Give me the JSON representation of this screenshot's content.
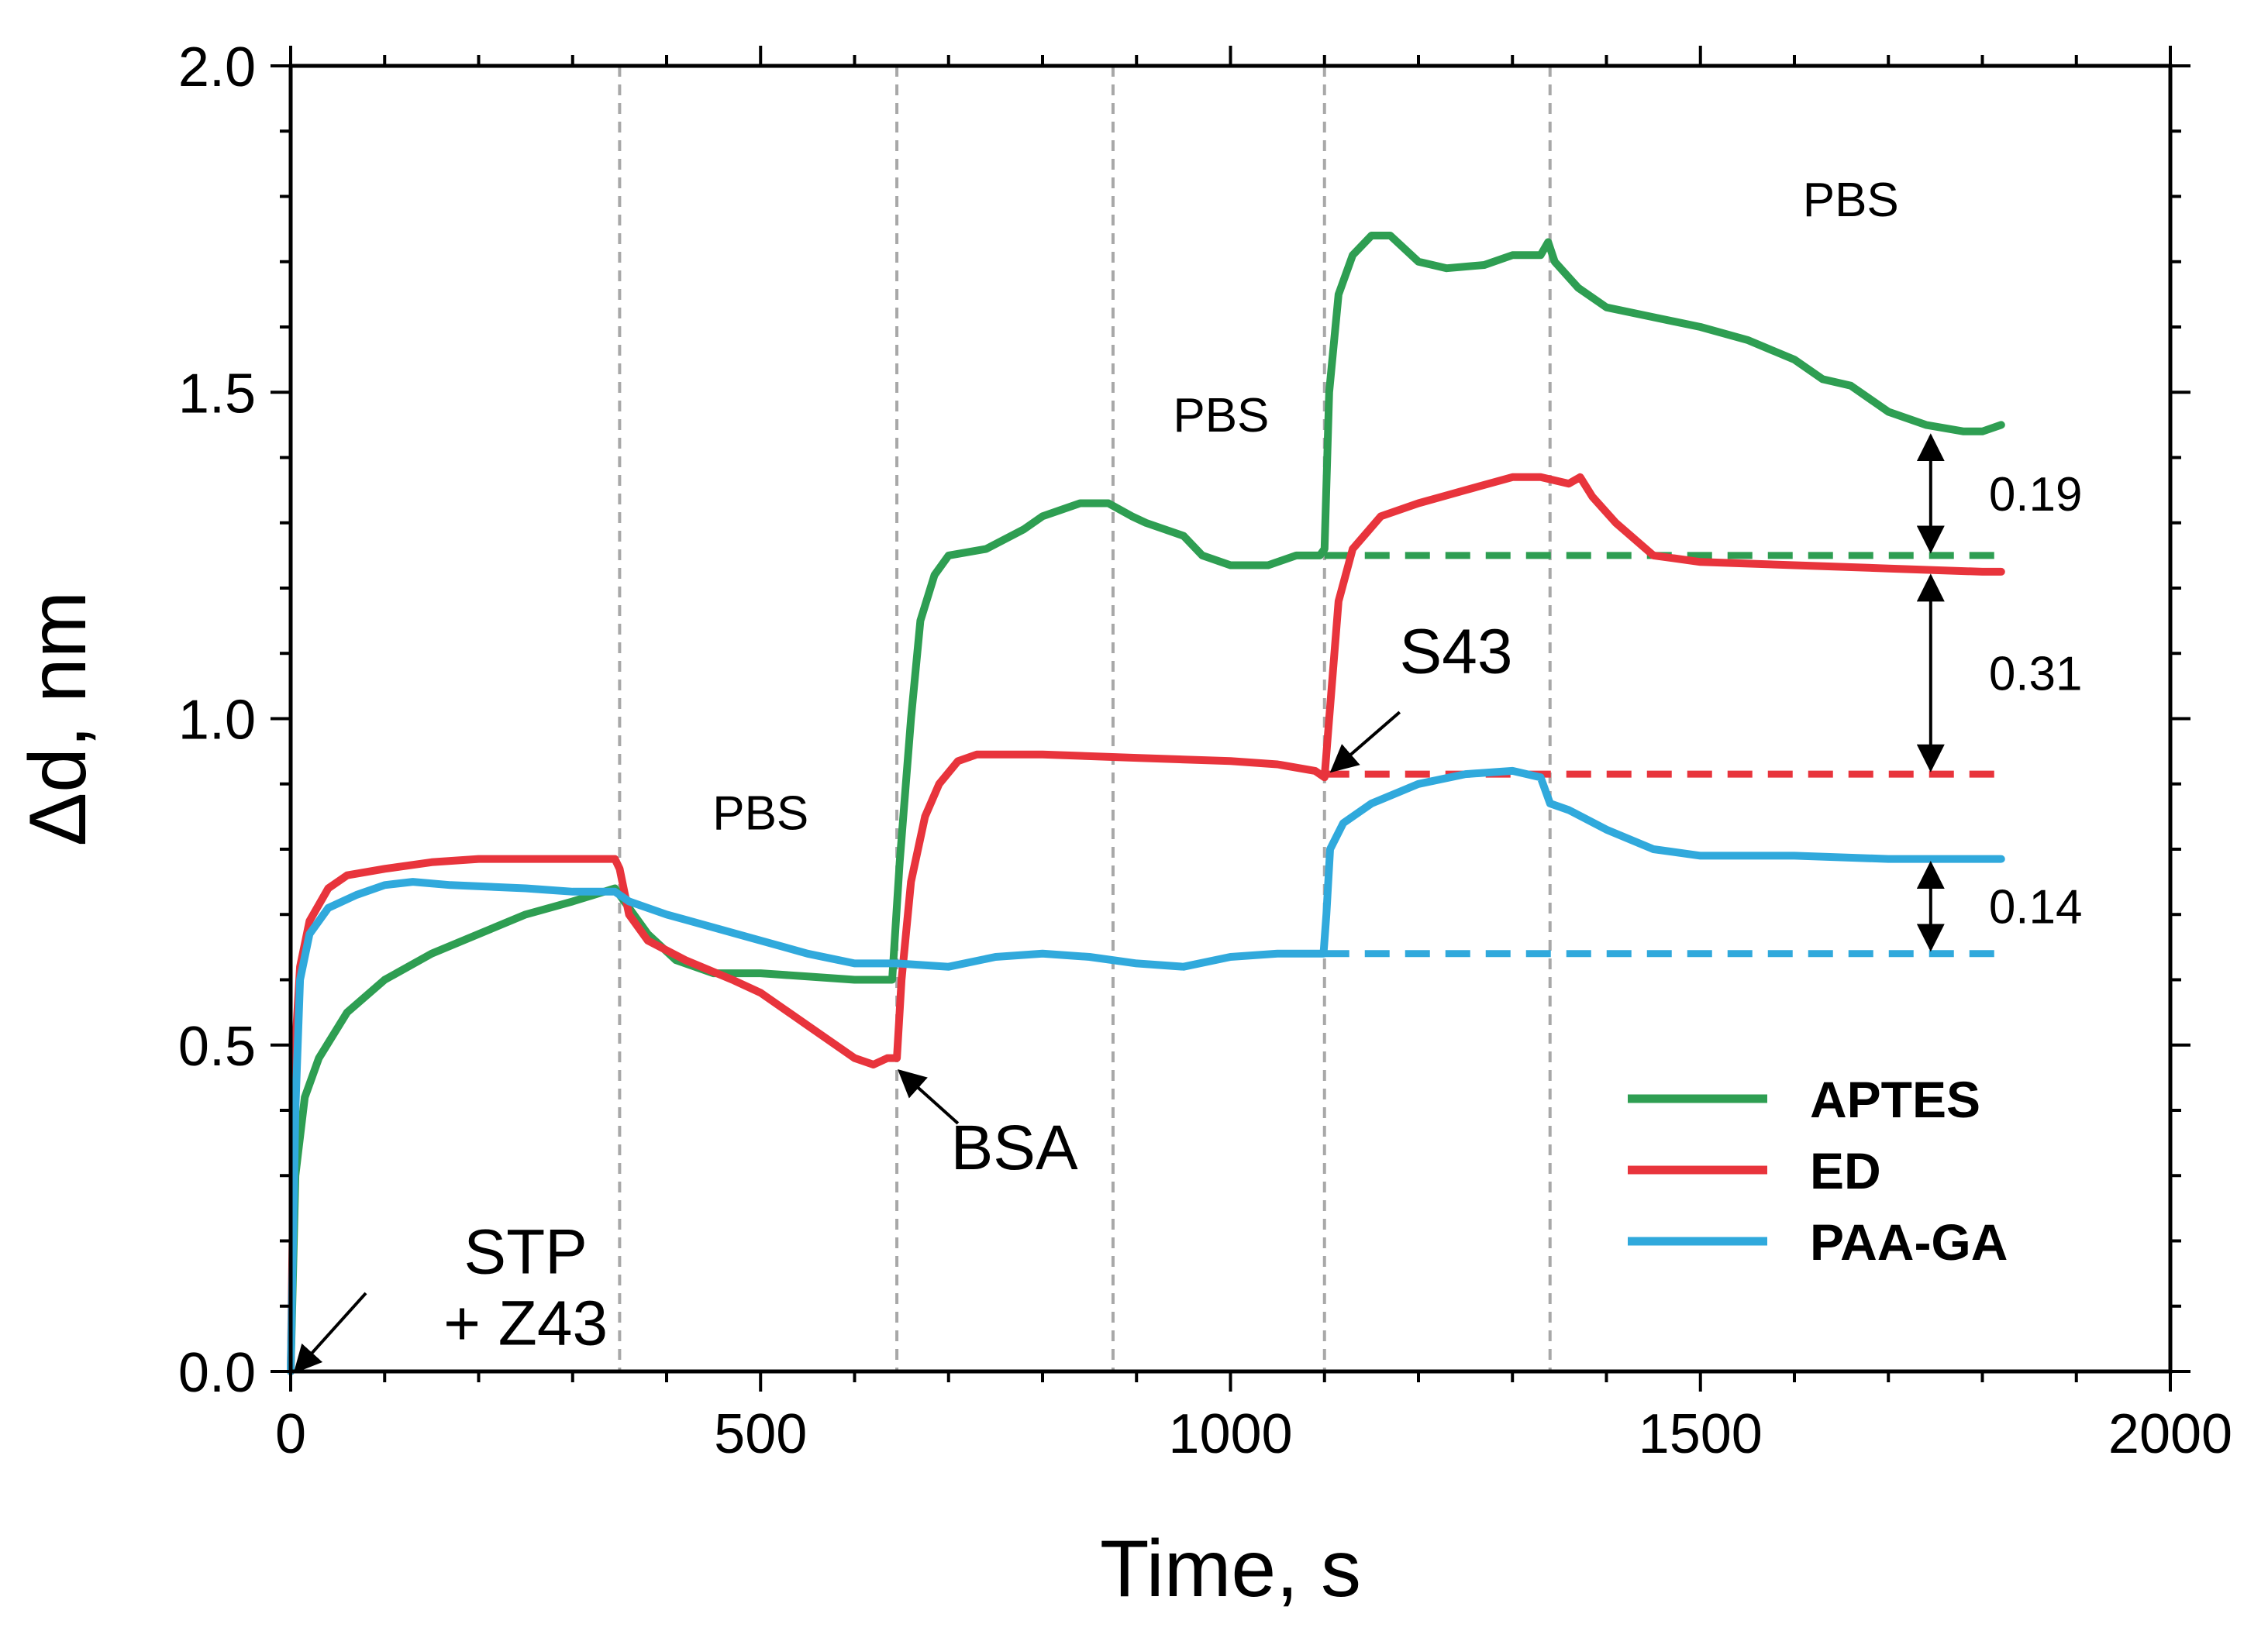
{
  "chart_data": {
    "type": "line",
    "title": "",
    "xlabel": "Time, s",
    "ylabel": "Δd, nm",
    "xlim": [
      0,
      2000
    ],
    "ylim": [
      0.0,
      2.0
    ],
    "xticks": [
      0,
      500,
      1000,
      1500,
      2000
    ],
    "xtick_labels": [
      "0",
      "500",
      "1000",
      "1500",
      "2000"
    ],
    "yticks": [
      0.0,
      0.5,
      1.0,
      1.5,
      2.0
    ],
    "ytick_labels": [
      "0.0",
      "0.5",
      "1.0",
      "1.5",
      "2.0"
    ],
    "phase_boundaries": [
      350,
      645,
      875,
      1100,
      1340
    ],
    "series": [
      {
        "name": "APTES",
        "color": "#2e9e52",
        "points": [
          [
            0,
            0
          ],
          [
            5,
            0.3
          ],
          [
            15,
            0.42
          ],
          [
            30,
            0.48
          ],
          [
            60,
            0.55
          ],
          [
            100,
            0.6
          ],
          [
            150,
            0.64
          ],
          [
            200,
            0.67
          ],
          [
            250,
            0.7
          ],
          [
            300,
            0.72
          ],
          [
            345,
            0.74
          ],
          [
            360,
            0.71
          ],
          [
            380,
            0.67
          ],
          [
            410,
            0.63
          ],
          [
            450,
            0.61
          ],
          [
            500,
            0.61
          ],
          [
            550,
            0.605
          ],
          [
            600,
            0.6
          ],
          [
            630,
            0.6
          ],
          [
            640,
            0.6
          ],
          [
            648,
            0.78
          ],
          [
            660,
            1.0
          ],
          [
            670,
            1.15
          ],
          [
            685,
            1.22
          ],
          [
            700,
            1.25
          ],
          [
            740,
            1.26
          ],
          [
            780,
            1.29
          ],
          [
            800,
            1.31
          ],
          [
            820,
            1.32
          ],
          [
            840,
            1.33
          ],
          [
            870,
            1.33
          ],
          [
            895,
            1.31
          ],
          [
            910,
            1.3
          ],
          [
            930,
            1.29
          ],
          [
            950,
            1.28
          ],
          [
            970,
            1.25
          ],
          [
            1000,
            1.235
          ],
          [
            1040,
            1.235
          ],
          [
            1070,
            1.25
          ],
          [
            1095,
            1.25
          ],
          [
            1100,
            1.26
          ],
          [
            1105,
            1.5
          ],
          [
            1115,
            1.65
          ],
          [
            1130,
            1.71
          ],
          [
            1150,
            1.74
          ],
          [
            1170,
            1.74
          ],
          [
            1200,
            1.7
          ],
          [
            1230,
            1.69
          ],
          [
            1270,
            1.695
          ],
          [
            1300,
            1.71
          ],
          [
            1330,
            1.71
          ],
          [
            1338,
            1.73
          ],
          [
            1345,
            1.7
          ],
          [
            1370,
            1.66
          ],
          [
            1400,
            1.63
          ],
          [
            1450,
            1.615
          ],
          [
            1500,
            1.6
          ],
          [
            1550,
            1.58
          ],
          [
            1600,
            1.55
          ],
          [
            1630,
            1.52
          ],
          [
            1660,
            1.51
          ],
          [
            1700,
            1.47
          ],
          [
            1740,
            1.45
          ],
          [
            1780,
            1.44
          ],
          [
            1800,
            1.44
          ],
          [
            1820,
            1.45
          ]
        ]
      },
      {
        "name": "ED",
        "color": "#e8343c",
        "points": [
          [
            0,
            0
          ],
          [
            5,
            0.5
          ],
          [
            10,
            0.62
          ],
          [
            20,
            0.69
          ],
          [
            40,
            0.74
          ],
          [
            60,
            0.76
          ],
          [
            100,
            0.77
          ],
          [
            150,
            0.78
          ],
          [
            200,
            0.785
          ],
          [
            250,
            0.785
          ],
          [
            300,
            0.785
          ],
          [
            345,
            0.785
          ],
          [
            350,
            0.77
          ],
          [
            360,
            0.7
          ],
          [
            380,
            0.66
          ],
          [
            420,
            0.63
          ],
          [
            470,
            0.6
          ],
          [
            500,
            0.58
          ],
          [
            550,
            0.53
          ],
          [
            600,
            0.48
          ],
          [
            620,
            0.47
          ],
          [
            635,
            0.48
          ],
          [
            645,
            0.48
          ],
          [
            650,
            0.6
          ],
          [
            660,
            0.75
          ],
          [
            675,
            0.85
          ],
          [
            690,
            0.9
          ],
          [
            710,
            0.935
          ],
          [
            730,
            0.945
          ],
          [
            800,
            0.945
          ],
          [
            900,
            0.94
          ],
          [
            1000,
            0.935
          ],
          [
            1050,
            0.93
          ],
          [
            1090,
            0.92
          ],
          [
            1100,
            0.91
          ],
          [
            1105,
            1.0
          ],
          [
            1115,
            1.18
          ],
          [
            1130,
            1.26
          ],
          [
            1160,
            1.31
          ],
          [
            1200,
            1.33
          ],
          [
            1250,
            1.35
          ],
          [
            1300,
            1.37
          ],
          [
            1330,
            1.37
          ],
          [
            1360,
            1.36
          ],
          [
            1372,
            1.37
          ],
          [
            1385,
            1.34
          ],
          [
            1410,
            1.3
          ],
          [
            1450,
            1.25
          ],
          [
            1500,
            1.24
          ],
          [
            1600,
            1.235
          ],
          [
            1700,
            1.23
          ],
          [
            1800,
            1.225
          ],
          [
            1820,
            1.225
          ]
        ]
      },
      {
        "name": "PAA-GA",
        "color": "#30a9dc",
        "points": [
          [
            0,
            0
          ],
          [
            5,
            0.4
          ],
          [
            10,
            0.6
          ],
          [
            20,
            0.67
          ],
          [
            40,
            0.71
          ],
          [
            70,
            0.73
          ],
          [
            100,
            0.745
          ],
          [
            130,
            0.75
          ],
          [
            170,
            0.745
          ],
          [
            250,
            0.74
          ],
          [
            300,
            0.735
          ],
          [
            345,
            0.735
          ],
          [
            360,
            0.72
          ],
          [
            400,
            0.7
          ],
          [
            450,
            0.68
          ],
          [
            500,
            0.66
          ],
          [
            550,
            0.64
          ],
          [
            600,
            0.625
          ],
          [
            645,
            0.625
          ],
          [
            700,
            0.62
          ],
          [
            750,
            0.635
          ],
          [
            800,
            0.64
          ],
          [
            850,
            0.635
          ],
          [
            900,
            0.625
          ],
          [
            950,
            0.62
          ],
          [
            1000,
            0.635
          ],
          [
            1050,
            0.64
          ],
          [
            1099,
            0.64
          ],
          [
            1102,
            0.7
          ],
          [
            1106,
            0.8
          ],
          [
            1120,
            0.84
          ],
          [
            1150,
            0.87
          ],
          [
            1200,
            0.9
          ],
          [
            1250,
            0.915
          ],
          [
            1300,
            0.92
          ],
          [
            1330,
            0.91
          ],
          [
            1340,
            0.87
          ],
          [
            1360,
            0.86
          ],
          [
            1400,
            0.83
          ],
          [
            1450,
            0.8
          ],
          [
            1500,
            0.79
          ],
          [
            1600,
            0.79
          ],
          [
            1700,
            0.785
          ],
          [
            1800,
            0.785
          ],
          [
            1820,
            0.785
          ]
        ]
      }
    ],
    "baselines": [
      {
        "series": "APTES",
        "y": 1.25,
        "x_start": 1100,
        "x_end": 1820,
        "color": "#2e9e52"
      },
      {
        "series": "ED",
        "y": 0.915,
        "x_start": 1100,
        "x_end": 1820,
        "color": "#e8343c"
      },
      {
        "series": "PAA-GA",
        "y": 0.64,
        "x_start": 1100,
        "x_end": 1820,
        "color": "#30a9dc"
      }
    ],
    "differences": [
      {
        "label": "0.19",
        "x": 1745,
        "y_from": 1.25,
        "y_to": 1.44
      },
      {
        "label": "0.31",
        "x": 1745,
        "y_from": 0.915,
        "y_to": 1.225
      },
      {
        "label": "0.14",
        "x": 1745,
        "y_from": 0.64,
        "y_to": 0.785
      }
    ],
    "annotations": [
      {
        "text_lines": [
          "STP",
          "+ Z43"
        ],
        "x": 250,
        "y": 0.15,
        "size": "big",
        "arrow_to": [
          5,
          0.0
        ],
        "arrow_from": [
          80,
          0.12
        ]
      },
      {
        "text_lines": [
          "PBS"
        ],
        "x": 500,
        "y": 0.83,
        "size": "small"
      },
      {
        "text_lines": [
          "BSA"
        ],
        "x": 770,
        "y": 0.31,
        "size": "big",
        "arrow_to": [
          648,
          0.46
        ],
        "arrow_from": [
          710,
          0.38
        ]
      },
      {
        "text_lines": [
          "PBS"
        ],
        "x": 990,
        "y": 1.44,
        "size": "small"
      },
      {
        "text_lines": [
          "S43"
        ],
        "x": 1240,
        "y": 1.07,
        "size": "big",
        "arrow_to": [
          1108,
          0.92
        ],
        "arrow_from": [
          1180,
          1.01
        ]
      },
      {
        "text_lines": [
          "PBS"
        ],
        "x": 1660,
        "y": 1.77,
        "size": "small"
      }
    ],
    "legend": {
      "placement": "bottom-right",
      "entries": [
        "APTES",
        "ED",
        "PAA-GA"
      ]
    }
  }
}
